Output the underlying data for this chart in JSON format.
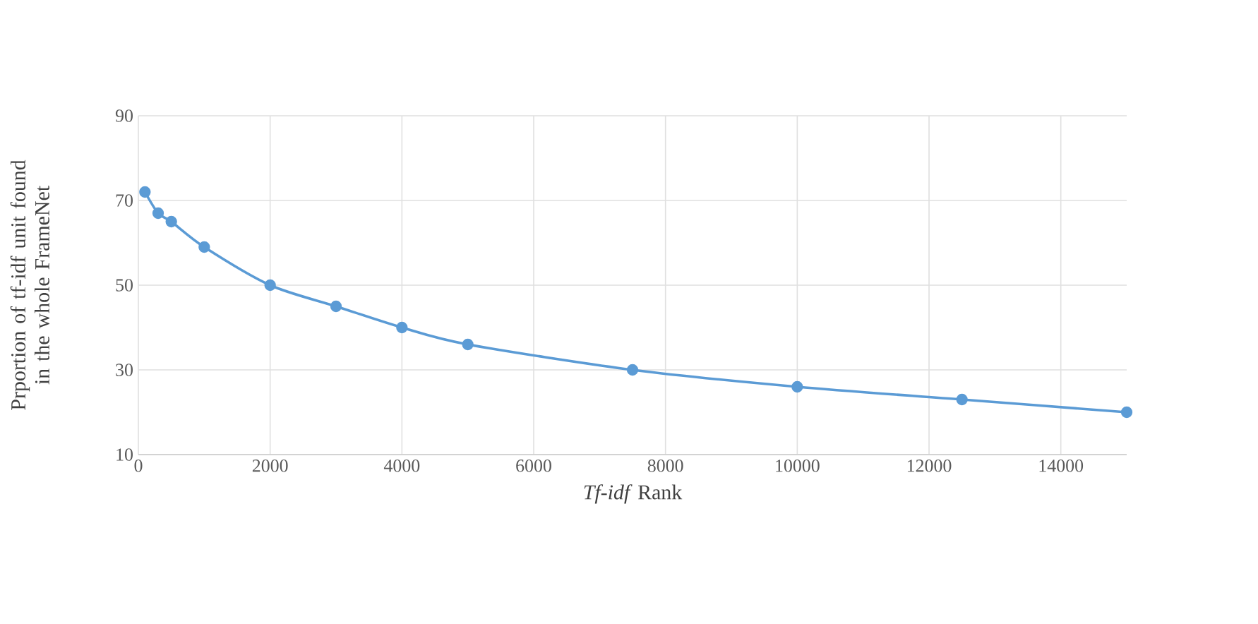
{
  "chart_data": {
    "type": "line",
    "xlabel": "*Tf-idf* Rank",
    "ylabel": "Prportion of tf-idf unit found in the whole FrameNet",
    "x": [
      100,
      300,
      500,
      1000,
      2000,
      3000,
      4000,
      5000,
      7500,
      10000,
      12500,
      15000
    ],
    "series": [
      {
        "color": "#5b9bd5",
        "values": [
          72,
          67,
          65,
          59,
          50,
          45,
          40,
          36,
          30,
          26,
          23,
          20
        ]
      }
    ],
    "xlim": [
      0,
      15000
    ],
    "xticks": [
      0,
      2000,
      4000,
      6000,
      8000,
      10000,
      12000,
      14000
    ],
    "ylim": [
      10,
      90
    ],
    "yticks": [
      10,
      30,
      50,
      70,
      90
    ],
    "grid": true,
    "marker": "circle",
    "line_style": "solid"
  }
}
